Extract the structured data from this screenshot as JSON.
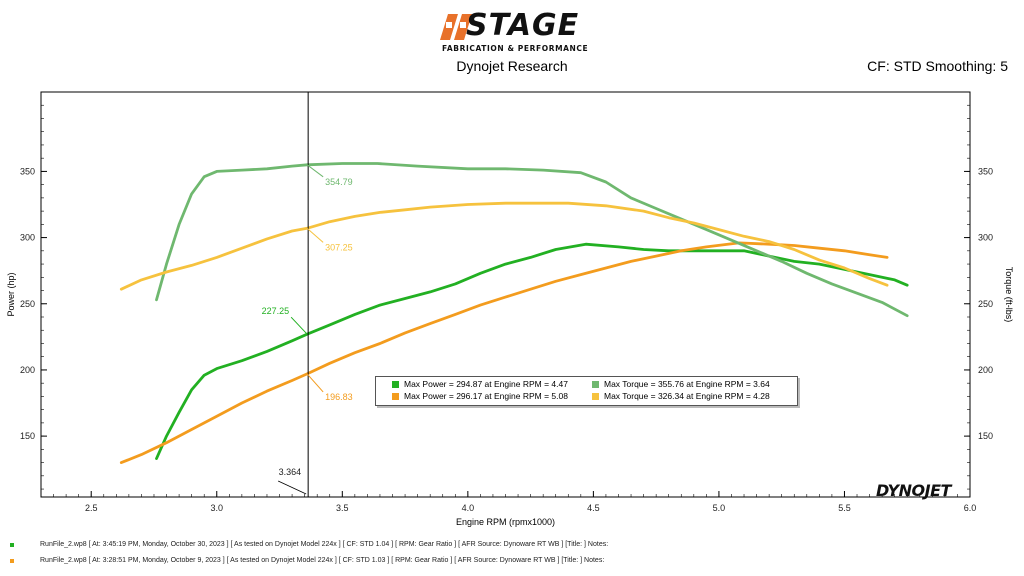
{
  "header": {
    "logo_text": "STAGE",
    "logo_sub": "FABRICATION & PERFORMANCE",
    "subtitle": "Dynojet Research",
    "cf_info": "CF: STD Smoothing: 5",
    "brand_footer": "DYNOJET"
  },
  "colors": {
    "power_run1": "#22b022",
    "power_run2": "#f39c1e",
    "torque_run1": "#6fb86f",
    "torque_run2": "#f6c23e"
  },
  "chart_data": {
    "type": "line",
    "xlabel": "Engine RPM (rpmx1000)",
    "ylabel_left": "Power (hp)",
    "ylabel_right": "Torque (ft-lbs)",
    "xlim": [
      2.3,
      6.0
    ],
    "ylim": [
      104,
      410
    ],
    "x_ticks": [
      "2.5",
      "3.0",
      "3.5",
      "4.0",
      "4.5",
      "5.0",
      "5.5",
      "6.0"
    ],
    "y_ticks": [
      "150",
      "200",
      "250",
      "300",
      "350"
    ],
    "cursor": {
      "x": 3.364,
      "label": "3.364"
    },
    "annotations": [
      {
        "text": "354.79",
        "x": 3.36,
        "y": 355,
        "series": "torque_run1"
      },
      {
        "text": "307.25",
        "x": 3.36,
        "y": 307,
        "series": "torque_run2"
      },
      {
        "text": "227.25",
        "x": 3.36,
        "y": 227,
        "series": "power_run1"
      },
      {
        "text": "196.83",
        "x": 3.36,
        "y": 197,
        "series": "power_run2"
      }
    ],
    "series": [
      {
        "id": "power_run1",
        "x": [
          2.76,
          2.8,
          2.85,
          2.9,
          2.95,
          3.0,
          3.1,
          3.2,
          3.3,
          3.36,
          3.45,
          3.55,
          3.65,
          3.75,
          3.85,
          3.95,
          4.05,
          4.15,
          4.25,
          4.35,
          4.47,
          4.6,
          4.7,
          4.8,
          4.9,
          5.0,
          5.1,
          5.2,
          5.3,
          5.4,
          5.5,
          5.6,
          5.7,
          5.75
        ],
        "y": [
          133,
          150,
          168,
          185,
          196,
          201,
          207,
          214,
          222,
          227,
          234,
          242,
          249,
          254,
          259,
          265,
          273,
          280,
          285,
          291,
          295,
          293,
          291,
          290,
          290,
          290,
          290,
          286,
          282,
          280,
          276,
          272,
          268,
          264
        ]
      },
      {
        "id": "power_run2",
        "x": [
          2.62,
          2.7,
          2.8,
          2.9,
          3.0,
          3.1,
          3.2,
          3.3,
          3.36,
          3.45,
          3.55,
          3.65,
          3.75,
          3.85,
          3.95,
          4.05,
          4.15,
          4.25,
          4.35,
          4.45,
          4.55,
          4.65,
          4.75,
          4.85,
          4.95,
          5.08,
          5.2,
          5.3,
          5.4,
          5.5,
          5.6,
          5.67
        ],
        "y": [
          130,
          136,
          145,
          155,
          165,
          175,
          184,
          192,
          197,
          205,
          213,
          220,
          228,
          235,
          242,
          249,
          255,
          261,
          267,
          272,
          277,
          282,
          286,
          290,
          293,
          296,
          295,
          294,
          292,
          290,
          287,
          285
        ]
      },
      {
        "id": "torque_run1",
        "x": [
          2.76,
          2.8,
          2.85,
          2.9,
          2.95,
          3.0,
          3.1,
          3.2,
          3.3,
          3.36,
          3.5,
          3.64,
          3.8,
          4.0,
          4.15,
          4.3,
          4.45,
          4.55,
          4.65,
          4.75,
          4.85,
          4.95,
          5.05,
          5.15,
          5.25,
          5.35,
          5.45,
          5.55,
          5.65,
          5.75
        ],
        "y": [
          253,
          280,
          310,
          333,
          346,
          350,
          351,
          352,
          354,
          355,
          356,
          356,
          354,
          352,
          352,
          351,
          349,
          342,
          330,
          322,
          314,
          306,
          298,
          290,
          282,
          273,
          265,
          258,
          251,
          241
        ]
      },
      {
        "id": "torque_run2",
        "x": [
          2.62,
          2.7,
          2.8,
          2.9,
          3.0,
          3.1,
          3.2,
          3.3,
          3.36,
          3.45,
          3.55,
          3.65,
          3.75,
          3.85,
          4.0,
          4.15,
          4.28,
          4.4,
          4.55,
          4.7,
          4.8,
          4.9,
          5.0,
          5.1,
          5.2,
          5.3,
          5.4,
          5.5,
          5.6,
          5.67
        ],
        "y": [
          261,
          268,
          274,
          279,
          285,
          292,
          299,
          305,
          307,
          312,
          316,
          319,
          321,
          323,
          325,
          326,
          326,
          326,
          324,
          320,
          315,
          311,
          306,
          301,
          297,
          291,
          283,
          277,
          269,
          264
        ]
      }
    ],
    "legend": [
      [
        "Max Power = 294.87 at Engine RPM = 4.47",
        "Max Torque = 355.76 at Engine RPM = 3.64"
      ],
      [
        "Max Power = 296.17 at Engine RPM = 5.08",
        "Max Torque = 326.34 at Engine RPM = 4.28"
      ]
    ]
  },
  "footer": {
    "run1": "RunFile_2.wp8  [ At:  3:45:19 PM, Monday, October 30, 2023 ]  [ As tested on Dynojet Model 224x ]  [ CF: STD 1.04 ]  [ RPM: Gear Ratio ]  [ AFR Source: Dynoware RT WB ]  [Title: ]   Notes:",
    "run2": "RunFile_2.wp8  [ At:  3:28:51 PM, Monday, October 9, 2023 ]  [ As tested on Dynojet Model 224x ]  [ CF: STD 1.03 ]  [ RPM: Gear Ratio ]  [ AFR Source: Dynoware RT WB ]  [Title: ]   Notes:"
  }
}
